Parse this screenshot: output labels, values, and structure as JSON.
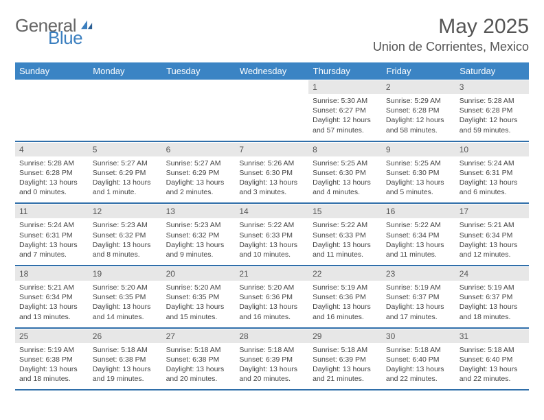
{
  "brand": {
    "name1": "General",
    "name2": "Blue"
  },
  "title": "May 2025",
  "location": "Union de Corrientes, Mexico",
  "days_of_week": [
    "Sunday",
    "Monday",
    "Tuesday",
    "Wednesday",
    "Thursday",
    "Friday",
    "Saturday"
  ],
  "style": {
    "header_bg": "#3b84c4",
    "header_fg": "#ffffff",
    "daylabel_bg": "#e7e7e7",
    "text_color": "#444444",
    "rule_color": "#2f6ea9",
    "body_font_size": 10.5,
    "title_font_size": 30
  },
  "weeks": [
    [
      {
        "n": "",
        "empty": true
      },
      {
        "n": "",
        "empty": true
      },
      {
        "n": "",
        "empty": true
      },
      {
        "n": "",
        "empty": true
      },
      {
        "n": "1",
        "sunrise": "5:30 AM",
        "sunset": "6:27 PM",
        "daylight": "12 hours and 57 minutes."
      },
      {
        "n": "2",
        "sunrise": "5:29 AM",
        "sunset": "6:28 PM",
        "daylight": "12 hours and 58 minutes."
      },
      {
        "n": "3",
        "sunrise": "5:28 AM",
        "sunset": "6:28 PM",
        "daylight": "12 hours and 59 minutes."
      }
    ],
    [
      {
        "n": "4",
        "sunrise": "5:28 AM",
        "sunset": "6:28 PM",
        "daylight": "13 hours and 0 minutes."
      },
      {
        "n": "5",
        "sunrise": "5:27 AM",
        "sunset": "6:29 PM",
        "daylight": "13 hours and 1 minute."
      },
      {
        "n": "6",
        "sunrise": "5:27 AM",
        "sunset": "6:29 PM",
        "daylight": "13 hours and 2 minutes."
      },
      {
        "n": "7",
        "sunrise": "5:26 AM",
        "sunset": "6:30 PM",
        "daylight": "13 hours and 3 minutes."
      },
      {
        "n": "8",
        "sunrise": "5:25 AM",
        "sunset": "6:30 PM",
        "daylight": "13 hours and 4 minutes."
      },
      {
        "n": "9",
        "sunrise": "5:25 AM",
        "sunset": "6:30 PM",
        "daylight": "13 hours and 5 minutes."
      },
      {
        "n": "10",
        "sunrise": "5:24 AM",
        "sunset": "6:31 PM",
        "daylight": "13 hours and 6 minutes."
      }
    ],
    [
      {
        "n": "11",
        "sunrise": "5:24 AM",
        "sunset": "6:31 PM",
        "daylight": "13 hours and 7 minutes."
      },
      {
        "n": "12",
        "sunrise": "5:23 AM",
        "sunset": "6:32 PM",
        "daylight": "13 hours and 8 minutes."
      },
      {
        "n": "13",
        "sunrise": "5:23 AM",
        "sunset": "6:32 PM",
        "daylight": "13 hours and 9 minutes."
      },
      {
        "n": "14",
        "sunrise": "5:22 AM",
        "sunset": "6:33 PM",
        "daylight": "13 hours and 10 minutes."
      },
      {
        "n": "15",
        "sunrise": "5:22 AM",
        "sunset": "6:33 PM",
        "daylight": "13 hours and 11 minutes."
      },
      {
        "n": "16",
        "sunrise": "5:22 AM",
        "sunset": "6:34 PM",
        "daylight": "13 hours and 11 minutes."
      },
      {
        "n": "17",
        "sunrise": "5:21 AM",
        "sunset": "6:34 PM",
        "daylight": "13 hours and 12 minutes."
      }
    ],
    [
      {
        "n": "18",
        "sunrise": "5:21 AM",
        "sunset": "6:34 PM",
        "daylight": "13 hours and 13 minutes."
      },
      {
        "n": "19",
        "sunrise": "5:20 AM",
        "sunset": "6:35 PM",
        "daylight": "13 hours and 14 minutes."
      },
      {
        "n": "20",
        "sunrise": "5:20 AM",
        "sunset": "6:35 PM",
        "daylight": "13 hours and 15 minutes."
      },
      {
        "n": "21",
        "sunrise": "5:20 AM",
        "sunset": "6:36 PM",
        "daylight": "13 hours and 16 minutes."
      },
      {
        "n": "22",
        "sunrise": "5:19 AM",
        "sunset": "6:36 PM",
        "daylight": "13 hours and 16 minutes."
      },
      {
        "n": "23",
        "sunrise": "5:19 AM",
        "sunset": "6:37 PM",
        "daylight": "13 hours and 17 minutes."
      },
      {
        "n": "24",
        "sunrise": "5:19 AM",
        "sunset": "6:37 PM",
        "daylight": "13 hours and 18 minutes."
      }
    ],
    [
      {
        "n": "25",
        "sunrise": "5:19 AM",
        "sunset": "6:38 PM",
        "daylight": "13 hours and 18 minutes."
      },
      {
        "n": "26",
        "sunrise": "5:18 AM",
        "sunset": "6:38 PM",
        "daylight": "13 hours and 19 minutes."
      },
      {
        "n": "27",
        "sunrise": "5:18 AM",
        "sunset": "6:38 PM",
        "daylight": "13 hours and 20 minutes."
      },
      {
        "n": "28",
        "sunrise": "5:18 AM",
        "sunset": "6:39 PM",
        "daylight": "13 hours and 20 minutes."
      },
      {
        "n": "29",
        "sunrise": "5:18 AM",
        "sunset": "6:39 PM",
        "daylight": "13 hours and 21 minutes."
      },
      {
        "n": "30",
        "sunrise": "5:18 AM",
        "sunset": "6:40 PM",
        "daylight": "13 hours and 22 minutes."
      },
      {
        "n": "31",
        "sunrise": "5:18 AM",
        "sunset": "6:40 PM",
        "daylight": "13 hours and 22 minutes."
      }
    ]
  ]
}
